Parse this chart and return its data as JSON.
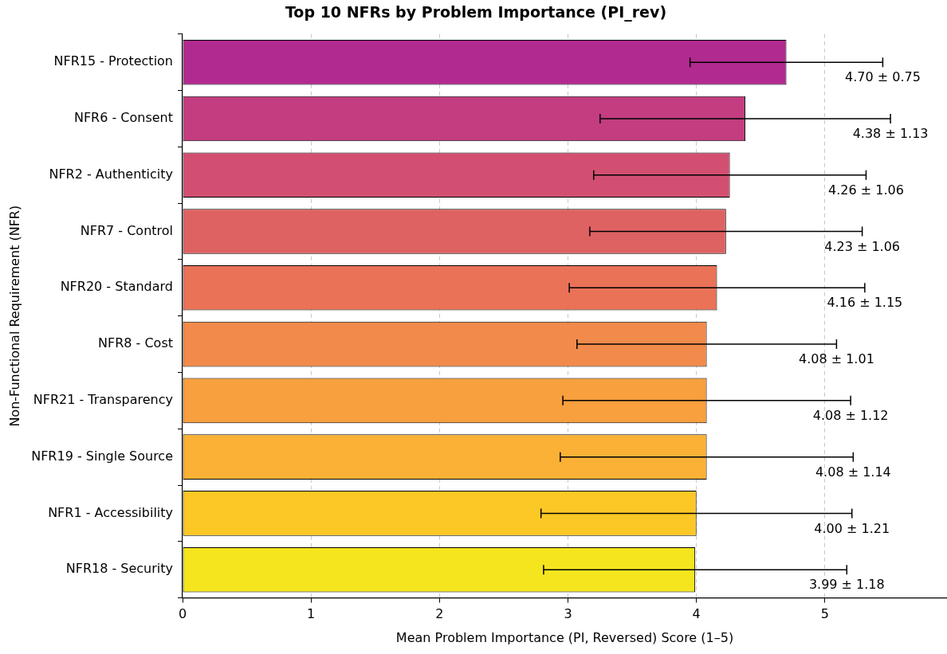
{
  "chart_data": {
    "type": "bar",
    "orientation": "horizontal",
    "title": "Top 10 NFRs by Problem Importance (PI_rev)",
    "xlabel": "Mean Problem Importance (PI, Reversed) Score (1–5)",
    "ylabel": "Non-Functional Requirement (NFR)",
    "categories": [
      "NFR15 - Protection",
      "NFR6 - Consent",
      "NFR2 - Authenticity",
      "NFR7 - Control",
      "NFR20 - Standard",
      "NFR8 - Cost",
      "NFR21 - Transparency",
      "NFR19 - Single Source",
      "NFR1 - Accessibility",
      "NFR18 - Security"
    ],
    "values": [
      4.7,
      4.38,
      4.26,
      4.23,
      4.16,
      4.08,
      4.08,
      4.08,
      4.0,
      3.99
    ],
    "errors": [
      0.75,
      1.13,
      1.06,
      1.06,
      1.15,
      1.01,
      1.12,
      1.14,
      1.21,
      1.18
    ],
    "annotations": [
      {
        "text": "4.70 ± 0.75",
        "x": 5.45,
        "y": "NFR15 - Protection"
      },
      {
        "text": "4.38 ± 1.13",
        "x": 5.51,
        "y": "NFR6 - Consent"
      },
      {
        "text": "4.26 ± 1.06",
        "x": 5.32,
        "y": "NFR2 - Authenticity"
      },
      {
        "text": "4.23 ± 1.06",
        "x": 5.29,
        "y": "NFR7 - Control"
      },
      {
        "text": "4.16 ± 1.15",
        "x": 5.31,
        "y": "NFR20 - Standard"
      },
      {
        "text": "4.08 ± 1.01",
        "x": 5.09,
        "y": "NFR8 - Cost"
      },
      {
        "text": "4.08 ± 1.12",
        "x": 5.2,
        "y": "NFR21 - Transparency"
      },
      {
        "text": "4.08 ± 1.14",
        "x": 5.22,
        "y": "NFR19 - Single Source"
      },
      {
        "text": "4.00 ± 1.21",
        "x": 5.21,
        "y": "NFR1 - Accessibility"
      },
      {
        "text": "3.99 ± 1.18",
        "x": 5.17,
        "y": "NFR18 - Security"
      }
    ],
    "colors": [
      "#b12a90",
      "#c33d80",
      "#d24f71",
      "#df6263",
      "#e97257",
      "#f28a4b",
      "#f89f3e",
      "#fab135",
      "#fcc825",
      "#f5e51f"
    ],
    "xlim": [
      0,
      5.95
    ],
    "xticks": [
      0,
      1,
      2,
      3,
      4,
      5
    ],
    "grid": "x",
    "legend": false
  }
}
